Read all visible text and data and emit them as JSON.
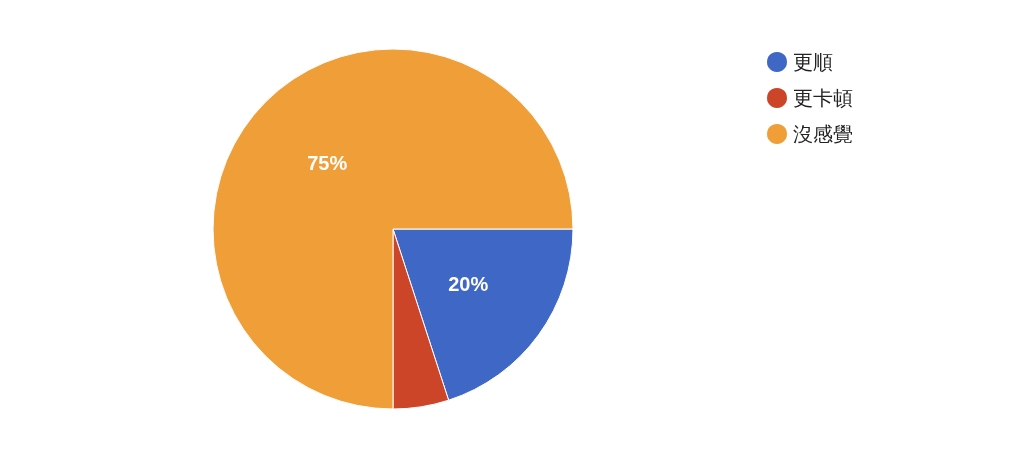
{
  "chart_data": {
    "type": "pie",
    "categories": [
      "更順",
      "更卡頓",
      "沒感覺"
    ],
    "values": [
      20,
      5,
      75
    ],
    "colors": [
      "#3f67c6",
      "#cc4528",
      "#f09f38"
    ],
    "value_labels": [
      "20%",
      null,
      "75%"
    ],
    "legend": "right"
  }
}
